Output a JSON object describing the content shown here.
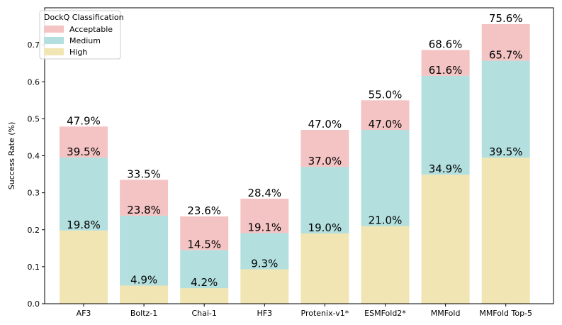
{
  "chart_data": {
    "type": "bar",
    "stacked": true,
    "categories": [
      "AF3",
      "Boltz-1",
      "Chai-1",
      "HF3",
      "Protenix-v1*",
      "ESMFold2*",
      "MMFold",
      "MMFold Top-5"
    ],
    "series": [
      {
        "name": "High",
        "color": "#f0e5b3",
        "values": [
          0.198,
          0.049,
          0.042,
          0.093,
          0.19,
          0.21,
          0.349,
          0.395
        ],
        "labels": [
          "19.8%",
          "4.9%",
          "4.2%",
          "9.3%",
          "19.0%",
          "21.0%",
          "34.9%",
          "39.5%"
        ]
      },
      {
        "name": "Medium",
        "color": "#b3dfdf",
        "values": [
          0.197,
          0.189,
          0.103,
          0.098,
          0.18,
          0.26,
          0.267,
          0.262
        ],
        "cumulative": [
          0.395,
          0.238,
          0.145,
          0.191,
          0.37,
          0.47,
          0.616,
          0.657
        ],
        "labels": [
          "39.5%",
          "23.8%",
          "14.5%",
          "19.1%",
          "37.0%",
          "47.0%",
          "61.6%",
          "65.7%"
        ]
      },
      {
        "name": "Acceptable",
        "color": "#f4c4c4",
        "values": [
          0.084,
          0.097,
          0.091,
          0.093,
          0.1,
          0.08,
          0.07,
          0.099
        ],
        "cumulative": [
          0.479,
          0.335,
          0.236,
          0.284,
          0.47,
          0.55,
          0.686,
          0.756
        ],
        "labels": [
          "47.9%",
          "33.5%",
          "23.6%",
          "28.4%",
          "47.0%",
          "55.0%",
          "68.6%",
          "75.6%"
        ]
      }
    ],
    "ylabel": "Success Rate (%)",
    "xlabel": "",
    "ylim": [
      0,
      0.8
    ],
    "yticks": [
      "0.0",
      "0.1",
      "0.2",
      "0.3",
      "0.4",
      "0.5",
      "0.6",
      "0.7"
    ],
    "legend": {
      "title": "DockQ Classification",
      "placement": "top-left",
      "entries": [
        {
          "label": "Acceptable",
          "color": "#f4c4c4"
        },
        {
          "label": "Medium",
          "color": "#b3dfdf"
        },
        {
          "label": "High",
          "color": "#f0e5b3"
        }
      ]
    },
    "grid": false
  }
}
